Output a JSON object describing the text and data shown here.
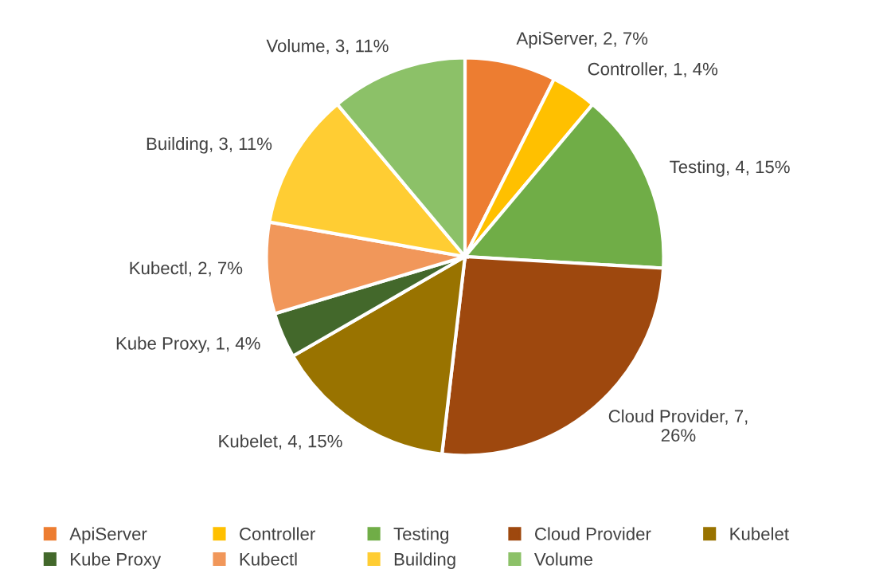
{
  "chart_data": {
    "type": "pie",
    "categories": [
      "ApiServer",
      "Controller",
      "Testing",
      "Cloud Provider",
      "Kubelet",
      "Kube Proxy",
      "Kubectl",
      "Building",
      "Volume"
    ],
    "values": [
      2,
      1,
      4,
      7,
      4,
      1,
      2,
      3,
      3
    ],
    "value_labels": [
      "ApiServer, 2, 7%",
      "Controller, 1, 4%",
      "Testing, 4, 15%",
      "Cloud Provider, 7, 26%",
      "Kubelet, 4, 15%",
      "Kube Proxy, 1, 4%",
      "Kubectl, 2, 7%",
      "Building, 3, 11%",
      "Volume, 3, 11%"
    ],
    "colors": [
      "#ed7d31",
      "#ffc000",
      "#70ad47",
      "#9e480e",
      "#997300",
      "#43682b",
      "#f1975a",
      "#ffcd33",
      "#8cc168"
    ],
    "legend": "bottom"
  }
}
